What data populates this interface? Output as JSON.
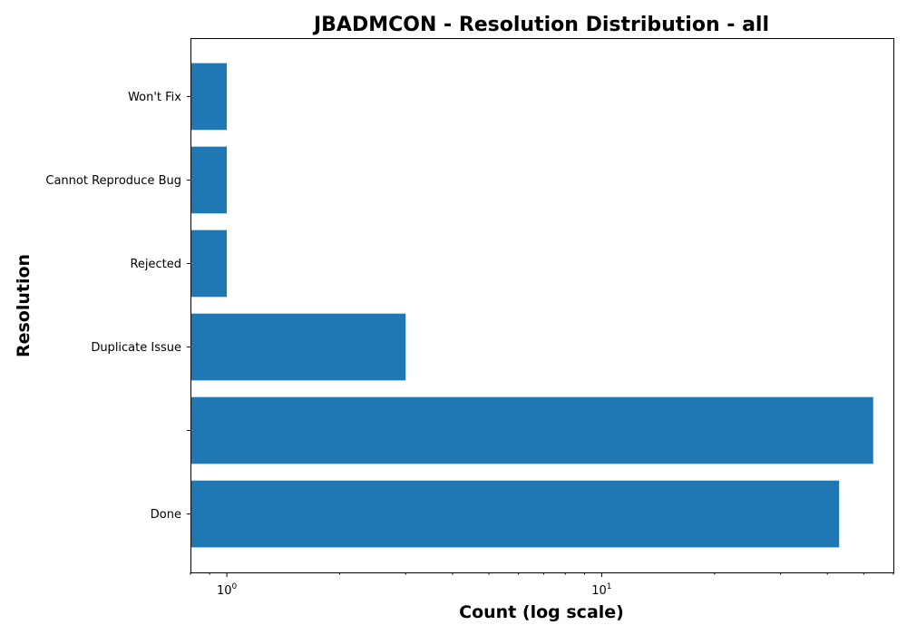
{
  "chart_data": {
    "type": "bar",
    "orientation": "horizontal",
    "title": "JBADMCON - Resolution Distribution - all",
    "xlabel": "Count (log scale)",
    "ylabel": "Resolution",
    "x_scale": "log",
    "xlim": [
      0.8,
      60
    ],
    "x_tick_labels": [
      {
        "value": 1,
        "base": "10",
        "exp": "0"
      },
      {
        "value": 10,
        "base": "10",
        "exp": "1"
      }
    ],
    "categories": [
      "Done",
      "",
      "Duplicate Issue",
      "Rejected",
      "Cannot Reproduce Bug",
      "Won't Fix"
    ],
    "values": [
      43,
      53,
      3,
      1,
      1,
      1
    ],
    "color": "#1f77b4",
    "grid": false
  }
}
